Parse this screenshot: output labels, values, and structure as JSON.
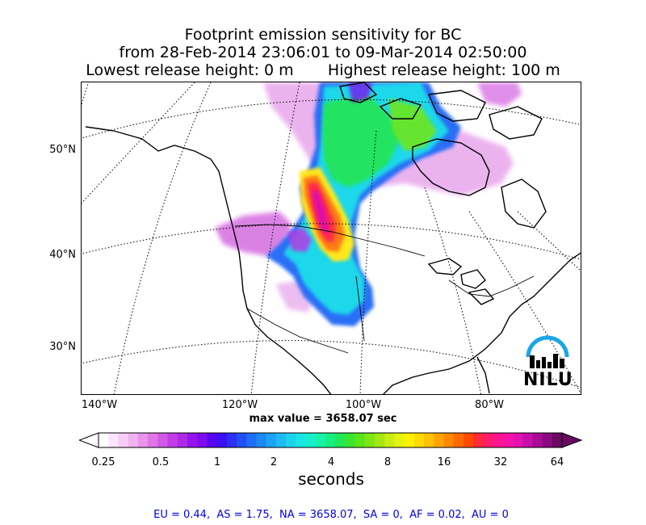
{
  "title": {
    "line1": "Footprint emission sensitivity for BC",
    "line2": "from 28-Feb-2014 23:06:01 to 09-Mar-2014 02:50:00",
    "line3": "Lowest release height: 0 m       Highest release height: 100 m"
  },
  "map": {
    "projection": "polar stereographic (North America)",
    "lat_labels": [
      "50°N",
      "40°N",
      "30°N"
    ],
    "lon_labels": [
      "140°W",
      "120°W",
      "100°W",
      "80°W"
    ],
    "max_value_text": "max value = 3658.07 sec",
    "logo_text": "NILU"
  },
  "colorbar": {
    "ticks": [
      "0.25",
      "0.5",
      "1",
      "2",
      "4",
      "8",
      "16",
      "32",
      "64"
    ],
    "label": "seconds",
    "colors": [
      "#ffffff",
      "#fbe5fb",
      "#f6cdf6",
      "#efb3ef",
      "#e895ea",
      "#df74e6",
      "#d258e6",
      "#c23de6",
      "#ad2ae6",
      "#9614ea",
      "#7e0cf0",
      "#5a05f2",
      "#3c10f4",
      "#2b30f6",
      "#2050f6",
      "#1d6df6",
      "#1c88f6",
      "#1ca3f4",
      "#1cbcf2",
      "#1cd3ee",
      "#1ae6e6",
      "#18f0cd",
      "#18f2a8",
      "#18ee80",
      "#20e856",
      "#3ae630",
      "#5ae619",
      "#7ee614",
      "#a6e814",
      "#c8ee12",
      "#e6f210",
      "#fff200",
      "#ffda00",
      "#ffc000",
      "#ffa400",
      "#ff8800",
      "#ff6a00",
      "#ff4a00",
      "#ff2a3a",
      "#ff1a6a",
      "#ff1490",
      "#f612a6",
      "#e410b2",
      "#c80ea8",
      "#a80c96",
      "#8a0a80",
      "#6a0862"
    ]
  },
  "region_summary": "EU = 0.44,  AS = 1.75,  NA = 3658.07,  SA = 0,  AF = 0.02,  AU = 0"
}
